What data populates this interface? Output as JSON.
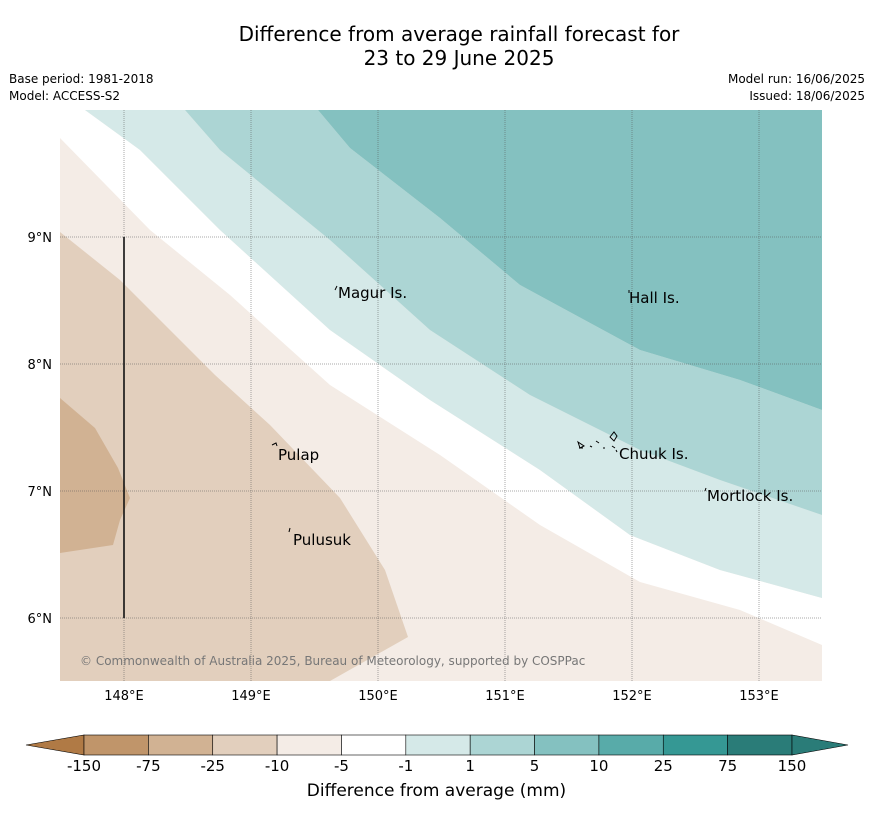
{
  "title": {
    "line1": "Difference from average rainfall forecast for",
    "line2": "23 to 29 June 2025"
  },
  "meta": {
    "base_period": "Base period: 1981-2018",
    "model": "Model: ACCESS-S2",
    "model_run": "Model run: 16/06/2025",
    "issued": "Issued: 18/06/2025"
  },
  "map": {
    "lat_labels": [
      "9°N",
      "8°N",
      "7°N",
      "6°N"
    ],
    "lon_labels": [
      "148°E",
      "149°E",
      "150°E",
      "151°E",
      "152°E",
      "153°E"
    ],
    "places": [
      "Magur Is.",
      "Hall Is.",
      "Pulap",
      "Chuuk Is.",
      "Mortlock Is.",
      "Pulusuk"
    ],
    "copyright": "© Commonwealth of Australia 2025, Bureau of Meteorology, supported by COSPPac"
  },
  "legend": {
    "title": "Difference from average (mm)",
    "ticks": [
      "-150",
      "-75",
      "-25",
      "-10",
      "-5",
      "-1",
      "1",
      "5",
      "10",
      "25",
      "75",
      "150"
    ],
    "colors": [
      "#b07a45",
      "#c0956a",
      "#d1b293",
      "#e2cfbd",
      "#f4ece6",
      "#ffffff",
      "#d5e9e8",
      "#acd5d4",
      "#84c1c0",
      "#58aba9",
      "#359894",
      "#2a7c78"
    ]
  }
}
